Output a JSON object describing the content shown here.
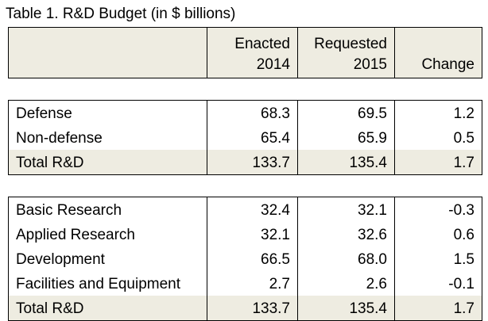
{
  "title": "Table 1. R&D Budget (in $ billions)",
  "header": {
    "col1_line1": "Enacted",
    "col1_line2": "2014",
    "col2_line1": "Requested",
    "col2_line2": "2015",
    "col3": "Change"
  },
  "defense_section": [
    {
      "label": "Defense",
      "enacted": "68.3",
      "requested": "69.5",
      "change": "1.2"
    },
    {
      "label": "Non-defense",
      "enacted": "65.4",
      "requested": "65.9",
      "change": "0.5"
    },
    {
      "label": "Total R&D",
      "enacted": "133.7",
      "requested": "135.4",
      "change": "1.7"
    }
  ],
  "funding_section": [
    {
      "label": "Basic Research",
      "enacted": "32.4",
      "requested": "32.1",
      "change": "-0.3"
    },
    {
      "label": "Applied Research",
      "enacted": "32.1",
      "requested": "32.6",
      "change": "0.6"
    },
    {
      "label": "Development",
      "enacted": "66.5",
      "requested": "68.0",
      "change": "1.5"
    },
    {
      "label": "Facilities and Equipment",
      "enacted": "2.7",
      "requested": "2.6",
      "change": "-0.1"
    },
    {
      "label": "Total R&D",
      "enacted": "133.7",
      "requested": "135.4",
      "change": "1.7"
    }
  ],
  "colors": {
    "shade": "#eeece1",
    "border": "#000000"
  }
}
